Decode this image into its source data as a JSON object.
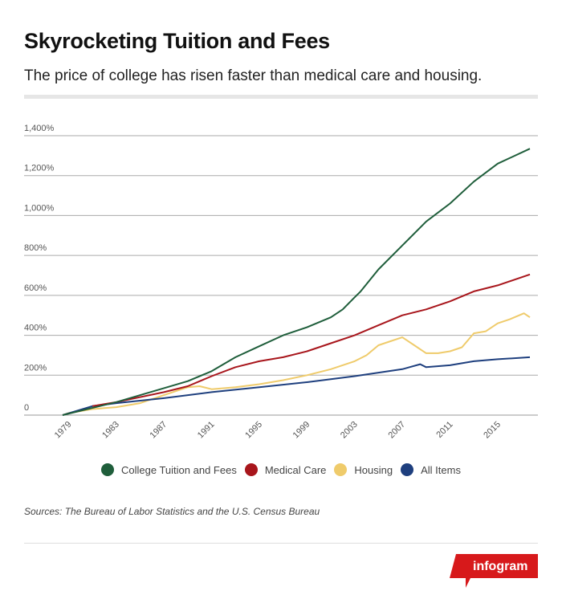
{
  "title": "Skyrocketing Tuition and Fees",
  "subtitle": "The price of college has risen faster than medical care and housing.",
  "source": "Sources: The Bureau of Labor Statistics and the U.S. Census Bureau",
  "logo": "infogram",
  "chart_data": {
    "type": "line",
    "ylim": [
      0,
      1400
    ],
    "xlim": [
      1978.5,
      2017.7
    ],
    "yticks": [
      0,
      200,
      400,
      600,
      800,
      1000,
      1200,
      1400
    ],
    "ytick_labels": [
      "0",
      "200%",
      "400%",
      "600%",
      "800%",
      "1,000%",
      "1,200%",
      "1,400%"
    ],
    "xticks": [
      1979,
      1983,
      1987,
      1991,
      1995,
      1999,
      2003,
      2007,
      2011,
      2015
    ],
    "xtick_labels": [
      "1979",
      "1983",
      "1987",
      "1991",
      "1995",
      "1999",
      "2003",
      "2007",
      "2011",
      "2015"
    ],
    "grid": true,
    "legend": "bottom",
    "series": [
      {
        "name": "College Tuition and Fees",
        "color": "#1f5e3b",
        "x": [
          1978.5,
          1983,
          1987,
          1989,
          1991,
          1993,
          1995,
          1997,
          1999,
          2001,
          2002,
          2003,
          2003.5,
          2005,
          2007,
          2009,
          2011,
          2013,
          2015,
          2017.7
        ],
        "y": [
          0,
          65,
          135,
          170,
          220,
          290,
          345,
          400,
          440,
          490,
          530,
          590,
          620,
          730,
          850,
          970,
          1060,
          1170,
          1260,
          1335
        ]
      },
      {
        "name": "Medical Care",
        "color": "#a8161c",
        "x": [
          1981,
          1983,
          1987,
          1989,
          1991,
          1993,
          1995,
          1997,
          1999,
          2001,
          2003,
          2005,
          2007,
          2009,
          2011,
          2013,
          2015,
          2017.7
        ],
        "y": [
          45,
          65,
          115,
          145,
          195,
          240,
          270,
          290,
          320,
          360,
          400,
          450,
          500,
          530,
          570,
          620,
          650,
          705
        ]
      },
      {
        "name": "Housing",
        "color": "#efcb6b",
        "x": [
          1978.5,
          1979,
          1981,
          1983,
          1985,
          1987,
          1989,
          1990,
          1991,
          1993,
          1995,
          1997,
          1999,
          2001,
          2003,
          2004,
          2005,
          2006,
          2007,
          2008,
          2009,
          2010,
          2011,
          2012,
          2013,
          2014,
          2015,
          2016,
          2017.2,
          2017.7
        ],
        "y": [
          0,
          10,
          30,
          40,
          60,
          100,
          140,
          145,
          130,
          140,
          155,
          175,
          200,
          230,
          270,
          300,
          350,
          370,
          390,
          350,
          310,
          310,
          320,
          340,
          410,
          420,
          460,
          480,
          510,
          490
        ]
      },
      {
        "name": "All Items",
        "color": "#1e3f7e",
        "x": [
          1978.5,
          1981,
          1983,
          1987,
          1991,
          1995,
          1999,
          2003,
          2007,
          2008.5,
          2009,
          2011,
          2013,
          2015,
          2017.7
        ],
        "y": [
          0,
          45,
          60,
          85,
          115,
          140,
          165,
          195,
          230,
          255,
          240,
          250,
          270,
          280,
          290
        ]
      }
    ]
  }
}
